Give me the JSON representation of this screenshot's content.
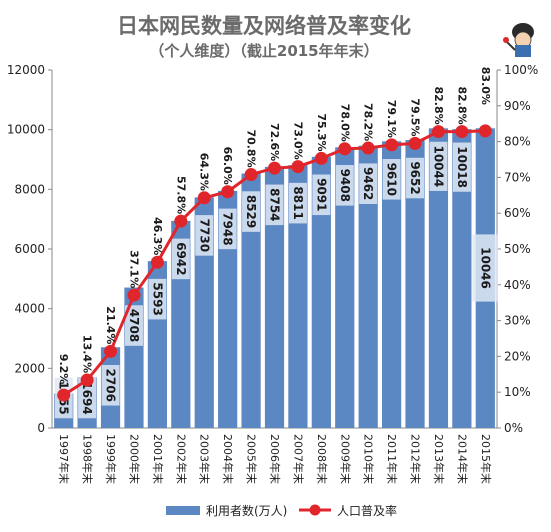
{
  "chart_data": {
    "type": "bar",
    "title": "日本网民数量及网络普及率变化",
    "subtitle": "（个人维度）（截止2015年年末）",
    "categories": [
      "1997年末",
      "1998年末",
      "1999年末",
      "2000年末",
      "2001年末",
      "2002年末",
      "2003年末",
      "2004年末",
      "2005年末",
      "2006年末",
      "2007年末",
      "2008年末",
      "2009年末",
      "2010年末",
      "2011年末",
      "2012年末",
      "2013年末",
      "2014年末",
      "2015年末"
    ],
    "series": [
      {
        "name": "利用者数(万人)",
        "type": "bar",
        "axis": "left",
        "color": "#5b87c3",
        "values": [
          1155,
          1694,
          2706,
          4708,
          5593,
          6942,
          7730,
          7948,
          8529,
          8754,
          8811,
          9091,
          9408,
          9462,
          9610,
          9652,
          10044,
          10018,
          10046
        ],
        "labels": [
          "1155",
          "1694",
          "2706",
          "4708",
          "5593",
          "6942",
          "7730",
          "7948",
          "8529",
          "8754",
          "8811",
          "9091",
          "9408",
          "9462",
          "9610",
          "9652",
          "10044",
          "10018",
          "10046"
        ]
      },
      {
        "name": "人口普及率",
        "type": "line",
        "axis": "right",
        "color": "#e0262b",
        "values": [
          9.2,
          13.4,
          21.4,
          37.1,
          46.3,
          57.8,
          64.3,
          66.0,
          70.8,
          72.6,
          73.0,
          75.3,
          78.0,
          78.2,
          79.1,
          79.5,
          82.8,
          82.8,
          83.0
        ],
        "labels": [
          "9.2%",
          "13.4%",
          "21.4%",
          "37.1%",
          "46.3%",
          "57.8%",
          "64.3%",
          "66.0%",
          "70.8%",
          "72.6%",
          "73.0%",
          "75.3%",
          "78.0%",
          "78.2%",
          "79.1%",
          "79.5%",
          "82.8%",
          "82.8%",
          "83.0%"
        ]
      }
    ],
    "left_axis": {
      "min": 0,
      "max": 12000,
      "ticks": [
        "0",
        "2000",
        "4000",
        "6000",
        "8000",
        "10000",
        "12000"
      ]
    },
    "right_axis": {
      "min": 0,
      "max": 100,
      "ticks": [
        "0%",
        "10%",
        "20%",
        "30%",
        "40%",
        "50%",
        "60%",
        "70%",
        "80%",
        "90%",
        "100%"
      ]
    },
    "legend_position": "bottom",
    "grid": false
  }
}
